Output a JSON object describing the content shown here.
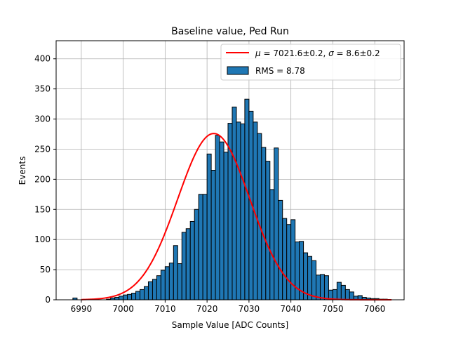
{
  "chart_data": {
    "type": "bar",
    "title": "Baseline value, Ped Run",
    "xlabel": "Sample Value [ADC Counts]",
    "ylabel": "Events",
    "xlim": [
      6984,
      7067
    ],
    "ylim": [
      0,
      430
    ],
    "xticks": [
      6990,
      7000,
      7010,
      7020,
      7030,
      7040,
      7050,
      7060
    ],
    "yticks": [
      0,
      50,
      100,
      150,
      200,
      250,
      300,
      350,
      400
    ],
    "grid": true,
    "legend_position": "top-right",
    "bar_color": "#1f77b4",
    "fit_color": "#ff0000",
    "histogram": {
      "name": "RMS = 8.78",
      "bin_start": 6988,
      "bin_width": 1,
      "counts": [
        3,
        0,
        0,
        0,
        0,
        0,
        0,
        0,
        1,
        3,
        4,
        6,
        8,
        9,
        11,
        14,
        17,
        22,
        30,
        34,
        40,
        49,
        55,
        61,
        90,
        60,
        112,
        118,
        130,
        150,
        175,
        175,
        242,
        215,
        273,
        262,
        245,
        293,
        320,
        295,
        292,
        333,
        313,
        295,
        276,
        253,
        230,
        183,
        252,
        165,
        135,
        125,
        133,
        96,
        97,
        78,
        72,
        65,
        41,
        42,
        40,
        16,
        17,
        29,
        24,
        17,
        13,
        6,
        7,
        4,
        3,
        2,
        2,
        1,
        1,
        0,
        0
      ]
    },
    "fit": {
      "name_prefix": "μ = 7021.6±0.2, ",
      "name_suffix": "σ = 8.6±0.2",
      "mu": 7021.6,
      "sigma": 8.6,
      "amplitude": 276,
      "x_range": [
        6990,
        7064
      ]
    },
    "legend": {
      "fit_label_mu": "μ",
      "fit_label_mid": " = 7021.6±0.2, ",
      "fit_label_sigma": "σ",
      "fit_label_end": " = 8.6±0.2",
      "hist_label": "RMS = 8.78"
    }
  }
}
